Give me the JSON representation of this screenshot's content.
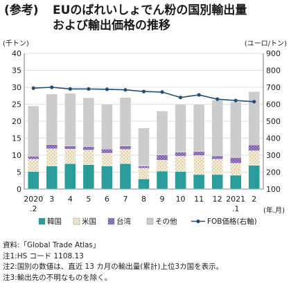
{
  "title": {
    "tag": "(参考)",
    "line1": "EUのばれいしょでん粉の国別輸出量",
    "line2": "および輸出価格の推移"
  },
  "chart_data": {
    "type": "bar",
    "stacked": true,
    "left_unit": "(千トン)",
    "right_unit": "(ユーロ/トン)",
    "x_unit": "(年.月)",
    "categories": [
      "2020.2",
      "3",
      "4",
      "5",
      "6",
      "7",
      "8",
      "9",
      "10",
      "11",
      "12",
      "2021.1",
      "2"
    ],
    "x_tick_labels": [
      [
        "2020",
        ".2"
      ],
      [
        "3",
        ""
      ],
      [
        "4",
        ""
      ],
      [
        "5",
        ""
      ],
      [
        "6",
        ""
      ],
      [
        "7",
        ""
      ],
      [
        "8",
        ""
      ],
      [
        "9",
        ""
      ],
      [
        "10",
        ""
      ],
      [
        "11",
        ""
      ],
      [
        "12",
        ""
      ],
      [
        "2021",
        ".1"
      ],
      [
        "2",
        ""
      ]
    ],
    "ylim": [
      0,
      40
    ],
    "yticks": [
      "0",
      "5",
      "10",
      "15",
      "20",
      "25",
      "30",
      "35",
      "40"
    ],
    "y2lim": [
      100,
      900
    ],
    "y2ticks": [
      "100",
      "200",
      "300",
      "400",
      "500",
      "600",
      "700",
      "800",
      "900"
    ],
    "grid": true,
    "legend_position": "bottom",
    "series": [
      {
        "name": "韓国",
        "kind": "bar",
        "color": "#2a9d9a",
        "values": [
          5.2,
          6.8,
          7.5,
          7.2,
          6.8,
          7.5,
          3.0,
          5.3,
          5.2,
          4.3,
          4.3,
          4.1,
          7.0
        ]
      },
      {
        "name": "米国",
        "kind": "bar",
        "color": "#f3ead3",
        "values": [
          3.6,
          5.1,
          4.3,
          4.3,
          3.8,
          4.2,
          3.2,
          3.2,
          4.5,
          5.6,
          4.5,
          3.5,
          4.3
        ]
      },
      {
        "name": "台湾",
        "kind": "bar",
        "color": "#7a5ca8",
        "values": [
          0.9,
          1.2,
          0.9,
          1.0,
          1.2,
          1.0,
          0.6,
          1.6,
          1.2,
          1.2,
          1.0,
          1.7,
          1.7
        ]
      },
      {
        "name": "その他",
        "kind": "bar",
        "color": "#cccccc",
        "values": [
          14.8,
          14.9,
          15.5,
          14.4,
          13.2,
          14.3,
          11.2,
          12.9,
          14.1,
          13.9,
          16.4,
          16.4,
          15.7
        ]
      },
      {
        "name": "FOB価格(右軸)",
        "kind": "line",
        "axis": "right",
        "color": "#1f4e79",
        "values": [
          695,
          700,
          690,
          690,
          688,
          685,
          675,
          672,
          640,
          655,
          630,
          622,
          615
        ]
      }
    ]
  },
  "notes": [
    "資料:「Global Trade Atlas」",
    "注1:HS コード 1108.13",
    "注2:国別の数値は、直近 13 カ月の輸出量(累計)上位3カ国を表示。",
    "注3:輸出先の不明なものを除く。"
  ]
}
